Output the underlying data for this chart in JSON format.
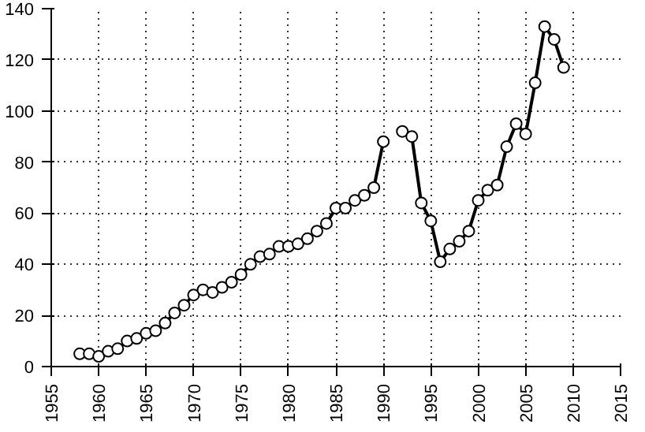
{
  "chart_data": {
    "type": "line",
    "x": [
      1958,
      1959,
      1960,
      1961,
      1962,
      1963,
      1964,
      1965,
      1966,
      1967,
      1968,
      1969,
      1970,
      1971,
      1972,
      1973,
      1974,
      1975,
      1976,
      1977,
      1978,
      1979,
      1980,
      1981,
      1982,
      1983,
      1984,
      1985,
      1986,
      1987,
      1988,
      1989,
      1990,
      1991,
      1992,
      1993,
      1994,
      1995,
      1996,
      1997,
      1998,
      1999,
      2000,
      2001,
      2002,
      2003,
      2004,
      2005,
      2006,
      2007,
      2008,
      2009
    ],
    "series": [
      {
        "color": "#000000",
        "values": [
          5,
          5,
          4,
          6,
          7,
          10,
          11,
          13,
          14,
          17,
          21,
          24,
          28,
          30,
          29,
          31,
          33,
          36,
          40,
          43,
          44,
          47,
          47,
          48,
          50,
          53,
          56,
          62,
          62,
          65,
          67,
          70,
          88,
          null,
          92,
          90,
          64,
          57,
          41,
          46,
          49,
          53,
          65,
          69,
          71,
          86,
          95,
          91,
          111,
          133,
          128,
          117
        ]
      }
    ],
    "xlim": [
      1955,
      2015
    ],
    "xticks": [
      1955,
      1960,
      1965,
      1970,
      1975,
      1980,
      1985,
      1990,
      1995,
      2000,
      2005,
      2010,
      2015
    ],
    "ylim": [
      0,
      140
    ],
    "yticks": [
      0,
      20,
      40,
      60,
      80,
      100,
      120,
      140
    ],
    "grid": true,
    "marker": "circle",
    "line_style": "solid"
  }
}
